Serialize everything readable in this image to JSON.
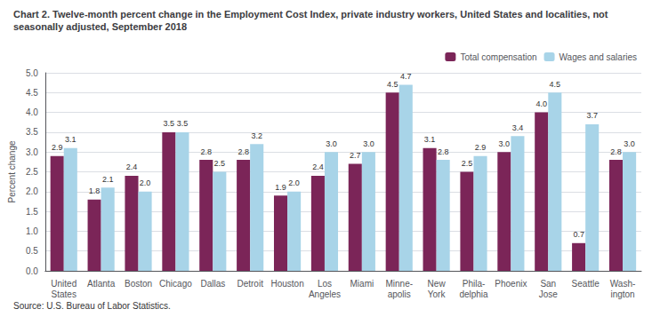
{
  "chart_data": {
    "type": "bar",
    "title": "Chart 2. Twelve-month percent change in the Employment Cost Index, private industry workers, United States and localities, not\nseasonally adjusted, September 2018",
    "ylabel": "Percent change",
    "source": "Source: U.S. Bureau of Labor Statistics.",
    "categories": [
      "United\nStates",
      "Atlanta",
      "Boston",
      "Chicago",
      "Dallas",
      "Detroit",
      "Houston",
      "Los\nAngeles",
      "Miami",
      "Minne-\napolis",
      "New\nYork",
      "Phila-\ndelphia",
      "Phoenix",
      "San\nJose",
      "Seattle",
      "Wash-\nington"
    ],
    "series": [
      {
        "name": "Total compensation",
        "color": "#7B2558",
        "values": [
          2.9,
          1.8,
          2.4,
          3.5,
          2.8,
          2.8,
          1.9,
          2.4,
          2.7,
          4.5,
          3.1,
          2.5,
          3.0,
          4.0,
          0.7,
          2.8
        ],
        "value_labels": [
          "2.9",
          "1.8",
          "2.4",
          "3.5",
          "2.8",
          "2.8",
          "1.9",
          "2.4",
          "2.7",
          "4.5",
          "3.1",
          "2.5",
          "3.0",
          "4.0",
          "0.7",
          "2.8"
        ]
      },
      {
        "name": "Wages and salaries",
        "color": "#A8D4E8",
        "values": [
          3.1,
          2.1,
          2.0,
          3.5,
          2.5,
          3.2,
          2.0,
          3.0,
          3.0,
          4.7,
          2.8,
          2.9,
          3.4,
          4.5,
          3.7,
          3.0
        ],
        "value_labels": [
          "3.1",
          "2.1",
          "2.0",
          "3.5",
          "2.5",
          "3.2",
          "2.0",
          "3.0",
          "3.0",
          "4.7",
          "2.8",
          "2.9",
          "3.4",
          "4.5",
          "3.7",
          "3.0"
        ]
      }
    ],
    "ylim": [
      0,
      5.0
    ],
    "yticks": [
      {
        "value": 0,
        "label": "0.0"
      },
      0.5,
      {
        "value": 1,
        "label": "1.0"
      },
      1.5,
      {
        "value": 2,
        "label": "2.0"
      },
      2.5,
      {
        "value": 3,
        "label": "3.0"
      },
      3.5,
      {
        "value": 4,
        "label": "4.0"
      },
      4.5,
      {
        "value": 5,
        "label": "5.0"
      }
    ],
    "grid": true,
    "legend": "upper right",
    "data_labels": true
  }
}
